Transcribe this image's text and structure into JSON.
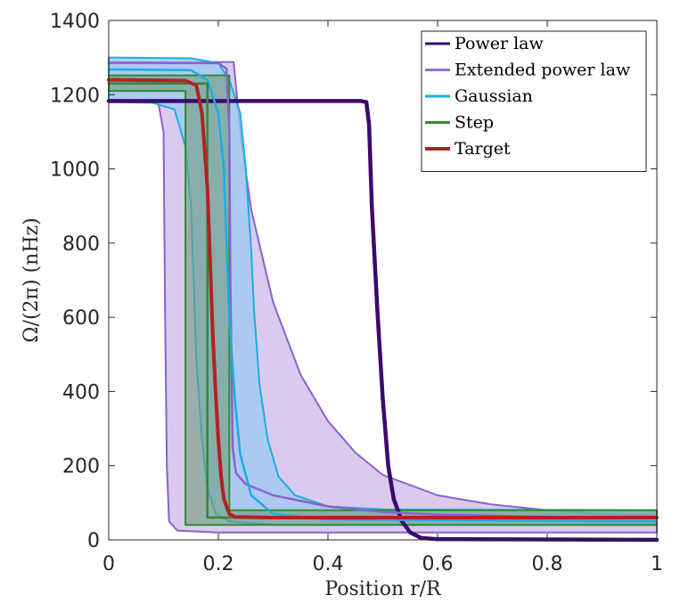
{
  "chart_data": {
    "type": "line",
    "title": "",
    "xlabel": "Position r/R",
    "ylabel": "Ω/(2π) (nHz)",
    "xlim": [
      0,
      1
    ],
    "ylim": [
      0,
      1400
    ],
    "xticks": [
      "0",
      "0.2",
      "0.4",
      "0.6",
      "0.8",
      "1"
    ],
    "xtick_values": [
      0,
      0.2,
      0.4,
      0.6,
      0.8,
      1
    ],
    "yticks": [
      "0",
      "200",
      "400",
      "600",
      "800",
      "1000",
      "1200",
      "1400"
    ],
    "ytick_values": [
      0,
      200,
      400,
      600,
      800,
      1000,
      1200,
      1400
    ],
    "grid": false,
    "legend_position": "top-right",
    "legend": [
      {
        "label": "Power law",
        "color": "#3b0a6e",
        "width": 3
      },
      {
        "label": "Extended power law",
        "color": "#9370d1",
        "width": 3
      },
      {
        "label": "Gaussian",
        "color": "#1aaee0",
        "width": 3
      },
      {
        "label": "Step",
        "color": "#2e8b2e",
        "width": 3
      },
      {
        "label": "Target",
        "color": "#b22222",
        "width": 4
      }
    ],
    "bands": [
      {
        "name": "Extended power law",
        "color": "#8a63c9",
        "fill": "#cdb8ea",
        "fill_opacity": 0.75,
        "upper": [
          [
            0,
            1288
          ],
          [
            0.2,
            1288
          ],
          [
            0.228,
            1288
          ],
          [
            0.24,
            1100
          ],
          [
            0.26,
            890
          ],
          [
            0.3,
            640
          ],
          [
            0.35,
            445
          ],
          [
            0.4,
            320
          ],
          [
            0.45,
            235
          ],
          [
            0.5,
            175
          ],
          [
            0.6,
            120
          ],
          [
            0.7,
            95
          ],
          [
            0.8,
            80
          ],
          [
            0.9,
            70
          ],
          [
            1,
            65
          ]
        ],
        "lower": [
          [
            0,
            1185
          ],
          [
            0.09,
            1183
          ],
          [
            0.1,
            1100
          ],
          [
            0.103,
            600
          ],
          [
            0.106,
            200
          ],
          [
            0.11,
            50
          ],
          [
            0.125,
            25
          ],
          [
            0.2,
            20
          ],
          [
            0.3,
            20
          ],
          [
            0.5,
            20
          ],
          [
            1,
            20
          ]
        ]
      },
      {
        "name": "Gaussian",
        "color": "#1aaee0",
        "fill": "#9cc8f3",
        "fill_opacity": 0.75,
        "upper": [
          [
            0,
            1300
          ],
          [
            0.15,
            1298
          ],
          [
            0.2,
            1285
          ],
          [
            0.22,
            1240
          ],
          [
            0.24,
            1150
          ],
          [
            0.25,
            1000
          ],
          [
            0.26,
            780
          ],
          [
            0.265,
            620
          ],
          [
            0.275,
            420
          ],
          [
            0.29,
            270
          ],
          [
            0.31,
            170
          ],
          [
            0.34,
            120
          ],
          [
            0.4,
            90
          ],
          [
            0.5,
            82
          ],
          [
            1,
            80
          ]
        ],
        "lower": [
          [
            0,
            1180
          ],
          [
            0.08,
            1178
          ],
          [
            0.12,
            1160
          ],
          [
            0.14,
            1060
          ],
          [
            0.15,
            900
          ],
          [
            0.155,
            700
          ],
          [
            0.16,
            480
          ],
          [
            0.17,
            270
          ],
          [
            0.18,
            140
          ],
          [
            0.195,
            70
          ],
          [
            0.22,
            50
          ],
          [
            0.3,
            40
          ],
          [
            1,
            40
          ]
        ]
      },
      {
        "name": "Step",
        "color": "#2e8b2e",
        "fill": "#6f9c7c",
        "fill_opacity": 0.6,
        "upper": [
          [
            0,
            1252
          ],
          [
            0.22,
            1252
          ],
          [
            0.22,
            80
          ],
          [
            1,
            80
          ]
        ],
        "lower": [
          [
            0,
            1210
          ],
          [
            0.14,
            1210
          ],
          [
            0.14,
            40
          ],
          [
            1,
            40
          ]
        ]
      }
    ],
    "series": [
      {
        "name": "Power law",
        "color": "#3b0a6e",
        "width": 4.5,
        "points": [
          [
            0,
            1183
          ],
          [
            0.46,
            1183
          ],
          [
            0.47,
            1180
          ],
          [
            0.475,
            1120
          ],
          [
            0.48,
            900
          ],
          [
            0.49,
            620
          ],
          [
            0.5,
            380
          ],
          [
            0.51,
            200
          ],
          [
            0.52,
            110
          ],
          [
            0.535,
            50
          ],
          [
            0.55,
            20
          ],
          [
            0.57,
            5
          ],
          [
            0.6,
            2
          ],
          [
            1,
            0
          ]
        ]
      },
      {
        "name": "Extended power law",
        "color": "#8a63c9",
        "width": 2.5,
        "points": [
          [
            0,
            1286
          ],
          [
            0.2,
            1285
          ],
          [
            0.215,
            1270
          ],
          [
            0.22,
            1100
          ],
          [
            0.222,
            700
          ],
          [
            0.226,
            250
          ],
          [
            0.232,
            180
          ],
          [
            0.25,
            150
          ],
          [
            0.3,
            120
          ],
          [
            0.4,
            90
          ],
          [
            0.5,
            75
          ],
          [
            0.6,
            68
          ],
          [
            0.8,
            62
          ],
          [
            1,
            60
          ]
        ]
      },
      {
        "name": "Gaussian",
        "color": "#1aaee0",
        "width": 2.5,
        "points": [
          [
            0,
            1268
          ],
          [
            0.15,
            1266
          ],
          [
            0.18,
            1240
          ],
          [
            0.2,
            1150
          ],
          [
            0.21,
            1000
          ],
          [
            0.215,
            800
          ],
          [
            0.22,
            600
          ],
          [
            0.23,
            380
          ],
          [
            0.24,
            230
          ],
          [
            0.26,
            120
          ],
          [
            0.3,
            70
          ],
          [
            0.4,
            55
          ],
          [
            1,
            50
          ]
        ]
      },
      {
        "name": "Step",
        "color": "#2e8b2e",
        "width": 2.5,
        "points": [
          [
            0,
            1230
          ],
          [
            0.18,
            1230
          ],
          [
            0.18,
            60
          ],
          [
            1,
            60
          ]
        ]
      },
      {
        "name": "Target",
        "color": "#b22222",
        "width": 4,
        "points": [
          [
            0,
            1240
          ],
          [
            0.14,
            1238
          ],
          [
            0.16,
            1225
          ],
          [
            0.17,
            1150
          ],
          [
            0.18,
            950
          ],
          [
            0.185,
            750
          ],
          [
            0.19,
            550
          ],
          [
            0.195,
            400
          ],
          [
            0.2,
            270
          ],
          [
            0.205,
            170
          ],
          [
            0.21,
            110
          ],
          [
            0.22,
            70
          ],
          [
            0.23,
            62
          ],
          [
            0.3,
            60
          ],
          [
            1,
            60
          ]
        ]
      }
    ]
  }
}
